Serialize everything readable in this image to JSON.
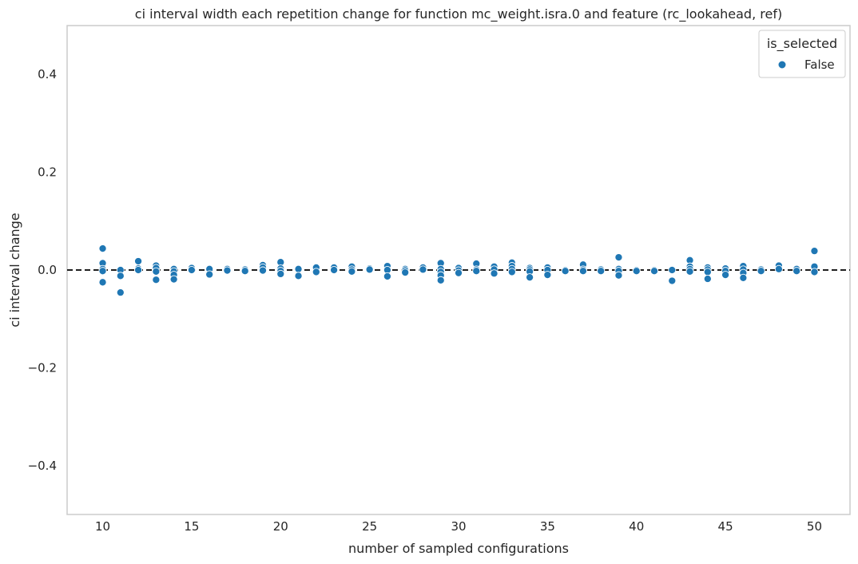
{
  "chart_data": {
    "type": "scatter",
    "title": "ci interval width each repetition change for function mc_weight.isra.0 and feature (rc_lookahead, ref)",
    "xlabel": "number of sampled configurations",
    "ylabel": "ci interval change",
    "xlim": [
      8,
      52
    ],
    "ylim": [
      -0.5,
      0.5
    ],
    "x_ticks": [
      10,
      15,
      20,
      25,
      30,
      35,
      40,
      45,
      50
    ],
    "y_ticks": [
      0.4,
      0.2,
      0.0,
      -0.2,
      -0.4
    ],
    "y_tick_labels": [
      "0.4",
      "0.2",
      "0.0",
      "−0.2",
      "−0.4"
    ],
    "reference_line": {
      "y": 0.0,
      "style": "dashed",
      "color": "#000000"
    },
    "grid": false,
    "legend": {
      "title": "is_selected",
      "placement": "top-right",
      "entries": [
        "False"
      ]
    },
    "series": [
      {
        "name": "False",
        "color": "#1f77b4",
        "points": [
          [
            10,
            0.044
          ],
          [
            10,
            0.014
          ],
          [
            10,
            0.002
          ],
          [
            10,
            -0.002
          ],
          [
            10,
            -0.025
          ],
          [
            11,
            0.0
          ],
          [
            11,
            -0.012
          ],
          [
            11,
            -0.046
          ],
          [
            12,
            0.018
          ],
          [
            12,
            0.003
          ],
          [
            12,
            0.0
          ],
          [
            13,
            0.009
          ],
          [
            13,
            0.004
          ],
          [
            13,
            -0.003
          ],
          [
            13,
            -0.02
          ],
          [
            14,
            0.002
          ],
          [
            14,
            -0.003
          ],
          [
            14,
            -0.01
          ],
          [
            14,
            -0.019
          ],
          [
            15,
            0.004
          ],
          [
            15,
            0.0
          ],
          [
            16,
            0.002
          ],
          [
            16,
            -0.009
          ],
          [
            17,
            0.002
          ],
          [
            17,
            -0.001
          ],
          [
            18,
            0.001
          ],
          [
            18,
            -0.002
          ],
          [
            19,
            0.01
          ],
          [
            19,
            0.005
          ],
          [
            19,
            -0.001
          ],
          [
            20,
            0.016
          ],
          [
            20,
            0.003
          ],
          [
            20,
            -0.002
          ],
          [
            20,
            -0.008
          ],
          [
            21,
            0.002
          ],
          [
            21,
            -0.012
          ],
          [
            22,
            0.005
          ],
          [
            22,
            -0.004
          ],
          [
            23,
            0.005
          ],
          [
            23,
            0.0
          ],
          [
            24,
            0.007
          ],
          [
            24,
            0.001
          ],
          [
            24,
            -0.003
          ],
          [
            25,
            0.003
          ],
          [
            25,
            0.001
          ],
          [
            26,
            0.008
          ],
          [
            26,
            0.0
          ],
          [
            26,
            -0.013
          ],
          [
            27,
            0.002
          ],
          [
            27,
            -0.001
          ],
          [
            27,
            -0.005
          ],
          [
            28,
            0.005
          ],
          [
            28,
            0.001
          ],
          [
            29,
            0.014
          ],
          [
            29,
            0.002
          ],
          [
            29,
            -0.004
          ],
          [
            29,
            -0.011
          ],
          [
            29,
            -0.021
          ],
          [
            30,
            0.004
          ],
          [
            30,
            -0.001
          ],
          [
            30,
            -0.006
          ],
          [
            31,
            0.013
          ],
          [
            31,
            0.001
          ],
          [
            31,
            -0.002
          ],
          [
            32,
            0.007
          ],
          [
            32,
            0.001
          ],
          [
            32,
            -0.007
          ],
          [
            33,
            0.015
          ],
          [
            33,
            0.008
          ],
          [
            33,
            0.002
          ],
          [
            33,
            -0.004
          ],
          [
            34,
            0.004
          ],
          [
            34,
            0.001
          ],
          [
            34,
            -0.003
          ],
          [
            34,
            -0.015
          ],
          [
            35,
            0.005
          ],
          [
            35,
            0.0
          ],
          [
            35,
            -0.01
          ],
          [
            36,
            0.0
          ],
          [
            36,
            -0.002
          ],
          [
            37,
            0.011
          ],
          [
            37,
            0.001
          ],
          [
            37,
            -0.002
          ],
          [
            38,
            0.001
          ],
          [
            38,
            -0.002
          ],
          [
            39,
            0.026
          ],
          [
            39,
            0.002
          ],
          [
            39,
            -0.002
          ],
          [
            39,
            -0.011
          ],
          [
            40,
            0.0
          ],
          [
            40,
            -0.002
          ],
          [
            41,
            0.0
          ],
          [
            41,
            -0.002
          ],
          [
            42,
            0.0
          ],
          [
            42,
            -0.022
          ],
          [
            43,
            0.02
          ],
          [
            43,
            0.007
          ],
          [
            43,
            0.002
          ],
          [
            43,
            -0.003
          ],
          [
            44,
            0.005
          ],
          [
            44,
            0.001
          ],
          [
            44,
            -0.004
          ],
          [
            44,
            -0.018
          ],
          [
            45,
            0.003
          ],
          [
            45,
            -0.002
          ],
          [
            45,
            -0.01
          ],
          [
            46,
            0.008
          ],
          [
            46,
            0.001
          ],
          [
            46,
            -0.006
          ],
          [
            46,
            -0.016
          ],
          [
            47,
            0.001
          ],
          [
            47,
            -0.002
          ],
          [
            48,
            0.009
          ],
          [
            48,
            0.002
          ],
          [
            49,
            0.002
          ],
          [
            49,
            -0.002
          ],
          [
            50,
            0.039
          ],
          [
            50,
            0.007
          ],
          [
            50,
            -0.004
          ]
        ]
      }
    ]
  }
}
